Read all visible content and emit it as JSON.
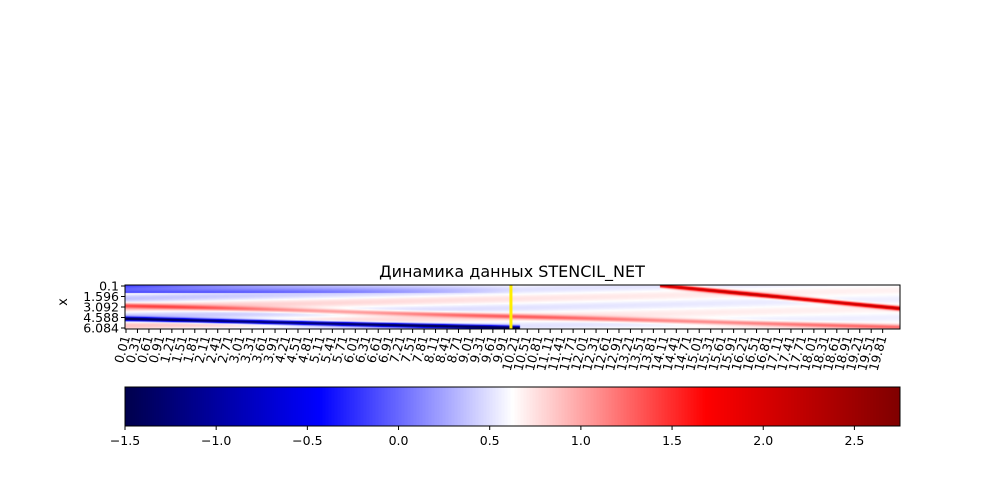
{
  "chart_data": [
    {
      "type": "heatmap",
      "title": "Динамика данных STENCIL_NET",
      "xlabel": "",
      "ylabel": "x",
      "x_tick_labels": [
        "0.01",
        "0.31",
        "0.61",
        "0.91",
        "1.21",
        "1.51",
        "1.81",
        "2.11",
        "2.41",
        "2.71",
        "3.01",
        "3.31",
        "3.61",
        "3.91",
        "4.21",
        "4.51",
        "4.81",
        "5.11",
        "5.41",
        "5.71",
        "6.01",
        "6.31",
        "6.61",
        "6.91",
        "7.21",
        "7.51",
        "7.81",
        "8.11",
        "8.41",
        "8.71",
        "9.01",
        "9.31",
        "9.61",
        "9.91",
        "10.21",
        "10.51",
        "10.81",
        "11.11",
        "11.41",
        "11.71",
        "12.01",
        "12.31",
        "12.61",
        "12.91",
        "13.21",
        "13.51",
        "13.81",
        "14.11",
        "14.41",
        "14.71",
        "15.01",
        "15.31",
        "15.61",
        "15.91",
        "16.21",
        "16.51",
        "16.81",
        "17.11",
        "17.41",
        "17.71",
        "18.01",
        "18.31",
        "18.61",
        "18.91",
        "19.21",
        "19.51",
        "19.81"
      ],
      "y_tick_labels": [
        "0.1",
        "1.596",
        "3.092",
        "4.588",
        "6.084"
      ],
      "x_range": [
        0.01,
        19.99
      ],
      "y_range": [
        0.1,
        6.28
      ],
      "vertical_marker": {
        "x": 9.96,
        "color": "#ffee00"
      },
      "colormap": "seismic",
      "color_range": [
        -1.5,
        2.75
      ],
      "description_features": [
        {
          "kind": "positive-wave-band",
          "t_start": 13.8,
          "x_start": 0.1,
          "t_end": 19.99,
          "x_end": 3.4,
          "peak": 2.2
        },
        {
          "kind": "negative-wave-band",
          "t_start": 0.01,
          "x_start": 4.9,
          "t_end": 10.2,
          "x_end": 6.2,
          "peak": -1.5
        },
        {
          "kind": "positive-trailing-band",
          "t_start": 0.01,
          "x_start": 3.0,
          "t_end": 19.99,
          "x_end": 6.1,
          "peak": 1.2
        }
      ]
    },
    {
      "type": "colorbar",
      "colormap": "seismic",
      "range": [
        -1.5,
        2.75
      ],
      "tick_values": [
        -1.5,
        -1.0,
        -0.5,
        0.0,
        0.5,
        1.0,
        1.5,
        2.0,
        2.5
      ],
      "tick_labels": [
        "−1.5",
        "−1.0",
        "−0.5",
        "0.0",
        "0.5",
        "1.0",
        "1.5",
        "2.0",
        "2.5"
      ]
    }
  ]
}
